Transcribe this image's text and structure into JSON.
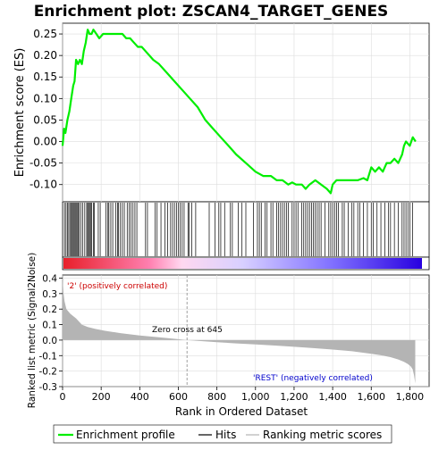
{
  "title": "Enrichment plot: ZSCAN4_TARGET_GENES",
  "chart_data": [
    {
      "type": "line",
      "panel": "enrichment",
      "ylabel": "Enrichment score (ES)",
      "ylim": [
        -0.14,
        0.275
      ],
      "yticks": [
        -0.1,
        -0.05,
        0.0,
        0.05,
        0.1,
        0.15,
        0.2,
        0.25
      ],
      "ytick_labels": [
        "-0.10",
        "-0.05",
        "0.00",
        "0.05",
        "0.10",
        "0.15",
        "0.20",
        "0.25"
      ],
      "xlim": [
        0,
        1900
      ],
      "grid": true,
      "color": "#00ee00",
      "series": [
        {
          "name": "Enrichment profile",
          "x": [
            0,
            8,
            15,
            25,
            35,
            45,
            55,
            62,
            70,
            80,
            90,
            100,
            110,
            120,
            130,
            140,
            150,
            160,
            175,
            190,
            210,
            230,
            250,
            270,
            290,
            310,
            330,
            350,
            370,
            390,
            410,
            430,
            450,
            470,
            500,
            540,
            580,
            620,
            660,
            700,
            740,
            780,
            820,
            860,
            900,
            950,
            1000,
            1040,
            1080,
            1110,
            1140,
            1170,
            1190,
            1210,
            1240,
            1260,
            1280,
            1310,
            1340,
            1370,
            1390,
            1400,
            1420,
            1440,
            1470,
            1500,
            1530,
            1560,
            1580,
            1600,
            1620,
            1640,
            1660,
            1680,
            1700,
            1720,
            1740,
            1760,
            1770,
            1780,
            1800,
            1815,
            1830
          ],
          "y": [
            -0.01,
            0.03,
            0.02,
            0.05,
            0.07,
            0.1,
            0.13,
            0.14,
            0.19,
            0.18,
            0.19,
            0.18,
            0.21,
            0.23,
            0.26,
            0.25,
            0.25,
            0.26,
            0.25,
            0.24,
            0.25,
            0.25,
            0.25,
            0.25,
            0.25,
            0.25,
            0.24,
            0.24,
            0.23,
            0.22,
            0.22,
            0.21,
            0.2,
            0.19,
            0.18,
            0.16,
            0.14,
            0.12,
            0.1,
            0.08,
            0.05,
            0.03,
            0.01,
            -0.01,
            -0.03,
            -0.05,
            -0.07,
            -0.08,
            -0.08,
            -0.09,
            -0.09,
            -0.1,
            -0.095,
            -0.1,
            -0.1,
            -0.11,
            -0.1,
            -0.09,
            -0.1,
            -0.11,
            -0.12,
            -0.1,
            -0.09,
            -0.09,
            -0.09,
            -0.09,
            -0.09,
            -0.085,
            -0.09,
            -0.06,
            -0.07,
            -0.06,
            -0.07,
            -0.05,
            -0.05,
            -0.04,
            -0.05,
            -0.03,
            -0.01,
            0.0,
            -0.01,
            0.01,
            0.0
          ]
        }
      ]
    },
    {
      "type": "scatter",
      "panel": "hits",
      "marker": "vertical-line",
      "x": [
        10,
        18,
        25,
        32,
        38,
        45,
        50,
        55,
        60,
        65,
        70,
        75,
        80,
        85,
        95,
        105,
        115,
        125,
        130,
        135,
        140,
        145,
        150,
        160,
        165,
        185,
        195,
        225,
        235,
        240,
        250,
        260,
        275,
        285,
        290,
        300,
        310,
        320,
        335,
        345,
        355,
        365,
        375,
        385,
        430,
        440,
        480,
        490,
        510,
        530,
        545,
        560,
        570,
        580,
        590,
        600,
        610,
        620,
        630,
        650,
        655,
        670,
        690,
        760,
        790,
        810,
        820,
        840,
        870,
        880,
        910,
        930,
        950,
        990,
        1010,
        1020,
        1030,
        1050,
        1060,
        1080,
        1090,
        1110,
        1120,
        1130,
        1140,
        1150,
        1160,
        1170,
        1190,
        1200,
        1210,
        1220,
        1240,
        1250,
        1260,
        1270,
        1280,
        1290,
        1300,
        1310,
        1320,
        1330,
        1340,
        1360,
        1380,
        1390,
        1400,
        1410,
        1420,
        1430,
        1450,
        1460,
        1480,
        1500,
        1510,
        1530,
        1540,
        1560,
        1580,
        1600,
        1610,
        1630,
        1650,
        1670,
        1690,
        1700,
        1720,
        1740,
        1760,
        1770,
        1780,
        1790,
        1800,
        1815
      ]
    },
    {
      "type": "heatmap",
      "panel": "rank-gradient",
      "colors": [
        "#e8202a",
        "#ff80b0",
        "#ffd8f0",
        "#d8d0ff",
        "#8070ff",
        "#2800e0"
      ],
      "stops": [
        0.0,
        0.24,
        0.33,
        0.5,
        0.75,
        1.0
      ]
    },
    {
      "type": "area",
      "panel": "ranked-metric",
      "ylabel": "Ranked list metric (Signal2Noise)",
      "xlabel": "Rank in Ordered Dataset",
      "ylim": [
        -0.3,
        0.42
      ],
      "yticks": [
        -0.3,
        -0.2,
        -0.1,
        0.0,
        0.1,
        0.2,
        0.3,
        0.4
      ],
      "ytick_labels": [
        "-0.3",
        "-0.2",
        "-0.1",
        "0.0",
        "0.1",
        "0.2",
        "0.3",
        "0.4"
      ],
      "xlim": [
        0,
        1900
      ],
      "xticks": [
        0,
        200,
        400,
        600,
        800,
        1000,
        1200,
        1400,
        1600,
        1800
      ],
      "xtick_labels": [
        "0",
        "200",
        "400",
        "600",
        "800",
        "1,000",
        "1,200",
        "1,400",
        "1,600",
        "1,800"
      ],
      "color": "#b4b4b4",
      "x": [
        0,
        5,
        10,
        20,
        40,
        70,
        100,
        130,
        170,
        220,
        300,
        400,
        500,
        600,
        645,
        700,
        800,
        900,
        1000,
        1100,
        1200,
        1300,
        1400,
        1500,
        1600,
        1650,
        1700,
        1740,
        1770,
        1790,
        1805,
        1815,
        1822,
        1828
      ],
      "y": [
        0.4,
        0.3,
        0.25,
        0.2,
        0.17,
        0.14,
        0.1,
        0.085,
        0.072,
        0.06,
        0.045,
        0.03,
        0.018,
        0.006,
        0.0,
        -0.005,
        -0.013,
        -0.021,
        -0.028,
        -0.035,
        -0.043,
        -0.052,
        -0.061,
        -0.072,
        -0.088,
        -0.098,
        -0.11,
        -0.125,
        -0.14,
        -0.155,
        -0.17,
        -0.19,
        -0.23,
        -0.28
      ],
      "zero_cross": 645,
      "annotations": {
        "zero_cross": "Zero cross at 645",
        "positive": "'2' (positively correlated)",
        "negative": "'REST' (negatively correlated)"
      }
    }
  ],
  "legend": {
    "items": [
      {
        "label": "Enrichment profile",
        "color": "#00ee00"
      },
      {
        "label": "Hits",
        "color": "#000000"
      },
      {
        "label": "Ranking metric scores",
        "color": "#b4b4b4"
      }
    ]
  }
}
